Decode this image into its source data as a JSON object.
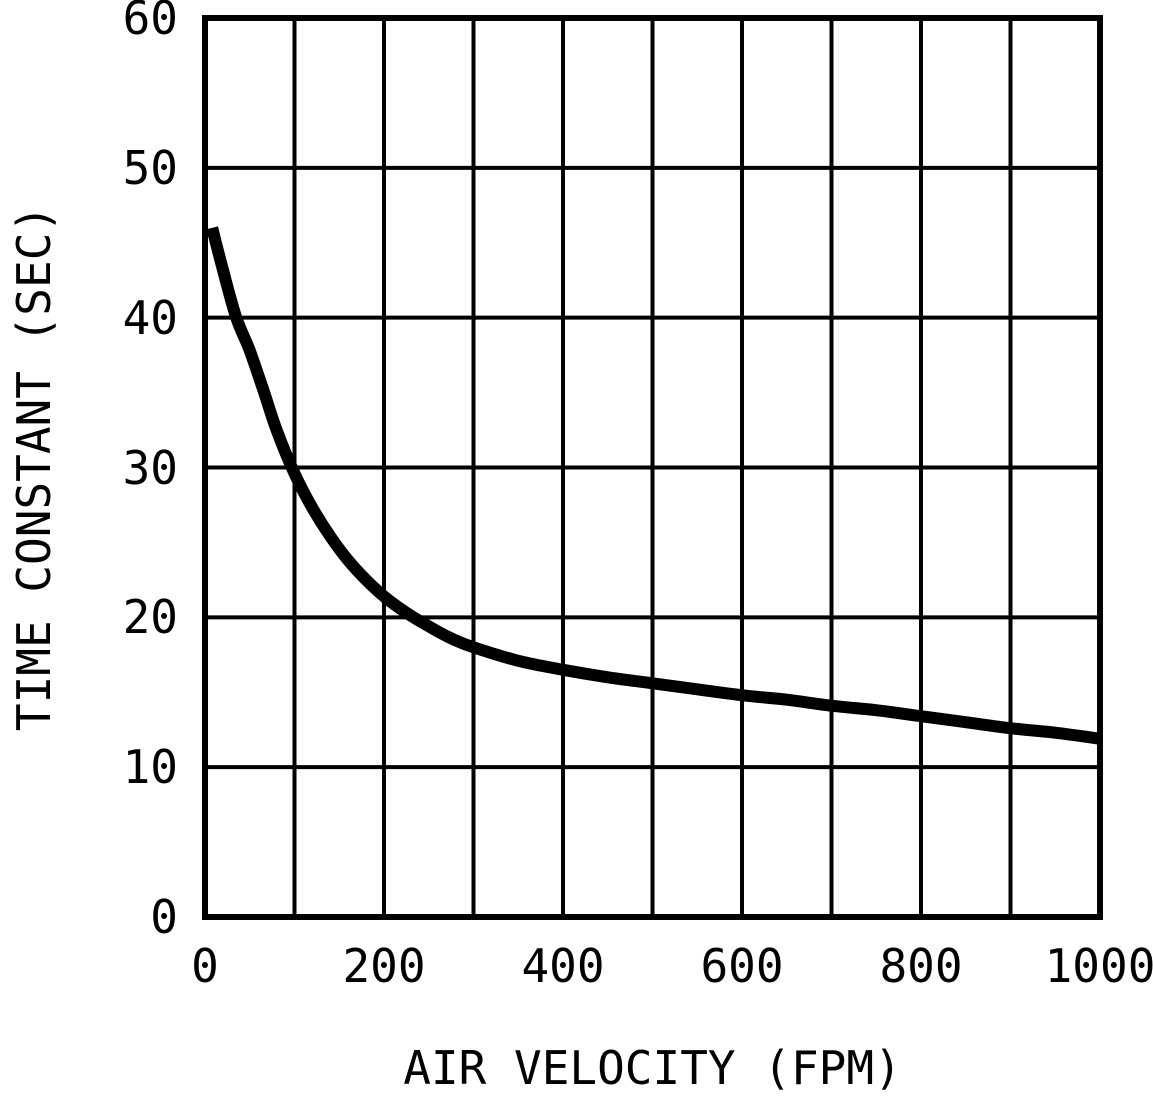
{
  "chart_data": {
    "type": "line",
    "title": "",
    "xlabel": "AIR VELOCITY (FPM)",
    "ylabel": "TIME CONSTANT (SEC)",
    "xlim": [
      0,
      1000
    ],
    "ylim": [
      0,
      60
    ],
    "x_grid_step": 100,
    "y_grid_step": 10,
    "x_ticks": [
      0,
      200,
      400,
      600,
      800,
      1000
    ],
    "x_tick_labels": [
      "0",
      "200",
      "400",
      "600",
      "800",
      "1000"
    ],
    "y_ticks": [
      0,
      10,
      20,
      30,
      40,
      50,
      60
    ],
    "y_tick_labels": [
      "0",
      "10",
      "20",
      "30",
      "40",
      "50",
      "60"
    ],
    "grid": true,
    "legend": false,
    "colors": {
      "line": "#000000",
      "grid": "#000000",
      "border": "#000000",
      "background": "#ffffff",
      "text": "#000000"
    },
    "series": [
      {
        "name": "time-constant-vs-air-velocity",
        "points": [
          [
            8,
            46.0
          ],
          [
            20,
            43.2
          ],
          [
            35,
            40.0
          ],
          [
            50,
            37.8
          ],
          [
            65,
            35.2
          ],
          [
            80,
            32.5
          ],
          [
            100,
            29.6
          ],
          [
            120,
            27.3
          ],
          [
            140,
            25.4
          ],
          [
            160,
            23.8
          ],
          [
            180,
            22.5
          ],
          [
            200,
            21.4
          ],
          [
            225,
            20.3
          ],
          [
            250,
            19.4
          ],
          [
            275,
            18.6
          ],
          [
            300,
            18.0
          ],
          [
            350,
            17.1
          ],
          [
            400,
            16.5
          ],
          [
            450,
            16.0
          ],
          [
            500,
            15.6
          ],
          [
            550,
            15.2
          ],
          [
            600,
            14.8
          ],
          [
            650,
            14.5
          ],
          [
            700,
            14.1
          ],
          [
            750,
            13.8
          ],
          [
            800,
            13.4
          ],
          [
            850,
            13.0
          ],
          [
            900,
            12.6
          ],
          [
            950,
            12.3
          ],
          [
            1000,
            11.9
          ]
        ]
      }
    ]
  }
}
